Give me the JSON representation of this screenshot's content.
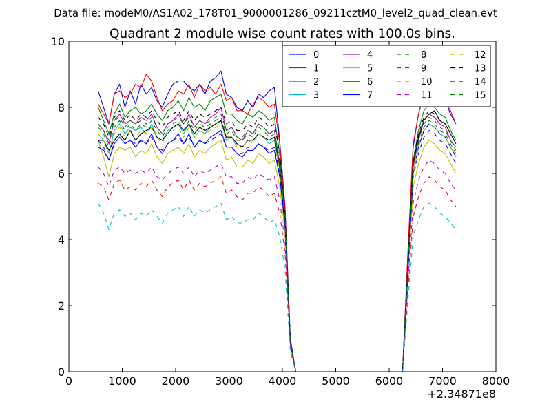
{
  "header": "Data file: modeM0/AS1A02_178T01_9000001286_09211cztM0_level2_quad_clean.evt",
  "chart_data": {
    "type": "line",
    "title": "Quadrant 2 module wise count rates with 100.0s bins.",
    "xlabel": "",
    "ylabel": "",
    "x_offset_label": "+2.34871e8",
    "xlim": [
      0,
      8000
    ],
    "ylim": [
      0,
      10
    ],
    "xticks": [
      "0",
      "1000",
      "2000",
      "3000",
      "4000",
      "5000",
      "6000",
      "7000",
      "8000"
    ],
    "yticks": [
      "0",
      "2",
      "4",
      "6",
      "8",
      "10"
    ],
    "grid": false,
    "legend_position": "top-right",
    "legend_columns": 4,
    "x": [
      550,
      650,
      750,
      850,
      950,
      1050,
      1150,
      1250,
      1350,
      1450,
      1550,
      1650,
      1750,
      1850,
      1950,
      2050,
      2150,
      2250,
      2350,
      2450,
      2550,
      2650,
      2750,
      2850,
      2950,
      3050,
      3150,
      3250,
      3350,
      3450,
      3550,
      3650,
      3750,
      3850,
      3950,
      4050,
      4150,
      4250,
      4350,
      4450,
      4550,
      4650,
      4750,
      4850,
      4950,
      5050,
      5150,
      5250,
      5350,
      5450,
      5550,
      5650,
      5750,
      5850,
      5950,
      6050,
      6150,
      6250,
      6350,
      6450,
      6550,
      6650,
      6750,
      6850,
      6950,
      7050,
      7150,
      7250
    ],
    "series": [
      {
        "name": "0",
        "color": "#0000ff",
        "dash": "solid",
        "values": [
          8.5,
          8.0,
          7.5,
          8.4,
          8.7,
          8.0,
          8.5,
          8.1,
          8.7,
          8.4,
          8.6,
          8.2,
          8.0,
          8.4,
          8.7,
          8.8,
          8.8,
          8.6,
          8.5,
          8.7,
          8.4,
          8.8,
          8.9,
          9.1,
          8.4,
          8.3,
          8.0,
          7.9,
          8.2,
          8.0,
          8.4,
          8.3,
          8.5,
          8.6,
          7.0,
          5.0,
          1.0,
          0,
          0,
          0,
          0,
          0,
          0,
          0,
          0,
          0,
          0,
          0,
          0,
          0,
          0,
          0,
          0,
          0,
          0,
          0,
          0,
          0,
          3.5,
          6.8,
          7.8,
          8.4,
          8.7,
          8.6,
          8.4,
          8.2,
          7.8,
          7.5
        ]
      },
      {
        "name": "1",
        "color": "#008000",
        "dash": "solid",
        "values": [
          8.0,
          7.6,
          7.2,
          7.8,
          8.1,
          7.7,
          7.9,
          8.0,
          7.8,
          7.9,
          8.1,
          7.8,
          7.6,
          7.9,
          8.0,
          8.2,
          7.9,
          8.3,
          8.0,
          8.1,
          7.9,
          8.2,
          8.3,
          8.4,
          7.8,
          7.8,
          7.6,
          7.5,
          7.8,
          7.7,
          7.9,
          7.8,
          7.6,
          7.7,
          6.6,
          4.8,
          0.9,
          0,
          0,
          0,
          0,
          0,
          0,
          0,
          0,
          0,
          0,
          0,
          0,
          0,
          0,
          0,
          0,
          0,
          0,
          0,
          0,
          0,
          3.3,
          6.4,
          7.3,
          7.9,
          8.1,
          8.0,
          7.8,
          7.7,
          7.3,
          7.0
        ]
      },
      {
        "name": "2",
        "color": "#ff0000",
        "dash": "solid",
        "values": [
          8.1,
          7.8,
          7.5,
          8.4,
          8.5,
          8.3,
          8.4,
          8.7,
          8.6,
          9.0,
          8.8,
          8.3,
          7.9,
          8.1,
          8.2,
          8.5,
          8.4,
          8.7,
          8.3,
          8.7,
          8.5,
          8.6,
          8.4,
          8.7,
          8.2,
          8.3,
          7.9,
          7.9,
          7.8,
          8.1,
          8.3,
          8.2,
          8.0,
          8.1,
          6.9,
          4.9,
          0.9,
          0,
          0,
          0,
          0,
          0,
          0,
          0,
          0,
          0,
          0,
          0,
          0,
          0,
          0,
          0,
          0,
          0,
          0,
          0,
          0,
          0,
          3.6,
          6.9,
          7.8,
          8.5,
          8.7,
          8.8,
          8.4,
          8.2,
          7.9,
          7.5
        ]
      },
      {
        "name": "3",
        "color": "#00bfbf",
        "dash": "solid",
        "values": [
          7.2,
          7.0,
          6.6,
          7.3,
          7.5,
          7.2,
          7.4,
          7.3,
          7.4,
          7.2,
          7.5,
          7.1,
          7.0,
          7.3,
          7.4,
          7.5,
          7.2,
          7.5,
          7.1,
          7.3,
          7.2,
          7.4,
          7.5,
          7.6,
          7.0,
          7.1,
          6.8,
          6.8,
          7.0,
          7.0,
          7.2,
          7.1,
          6.9,
          7.0,
          6.1,
          4.5,
          0.9,
          0,
          0,
          0,
          0,
          0,
          0,
          0,
          0,
          0,
          0,
          0,
          0,
          0,
          0,
          0,
          0,
          0,
          0,
          0,
          0,
          0,
          3.1,
          6.0,
          6.8,
          7.3,
          7.5,
          7.4,
          7.2,
          7.1,
          6.8,
          6.5
        ]
      },
      {
        "name": "4",
        "color": "#bf00bf",
        "dash": "solid",
        "values": [
          7.5,
          7.3,
          6.9,
          7.6,
          7.8,
          7.5,
          7.6,
          7.5,
          7.7,
          7.6,
          7.8,
          7.4,
          7.2,
          7.5,
          7.6,
          7.8,
          7.5,
          7.8,
          7.4,
          7.6,
          7.5,
          7.7,
          7.8,
          8.0,
          7.3,
          7.4,
          7.1,
          7.0,
          7.3,
          7.2,
          7.5,
          7.4,
          7.2,
          7.3,
          6.3,
          4.6,
          0.9,
          0,
          0,
          0,
          0,
          0,
          0,
          0,
          0,
          0,
          0,
          0,
          0,
          0,
          0,
          0,
          0,
          0,
          0,
          0,
          0,
          0,
          3.2,
          6.2,
          7.0,
          7.6,
          7.8,
          7.7,
          7.5,
          7.4,
          7.0,
          6.8
        ]
      },
      {
        "name": "5",
        "color": "#bfbf00",
        "dash": "solid",
        "values": [
          7.0,
          6.5,
          5.9,
          6.6,
          6.8,
          6.7,
          6.8,
          6.5,
          6.7,
          6.6,
          6.9,
          6.5,
          6.3,
          6.6,
          6.7,
          6.8,
          6.6,
          6.9,
          6.5,
          6.7,
          6.6,
          6.8,
          6.9,
          7.0,
          6.4,
          6.5,
          6.2,
          6.2,
          6.4,
          6.3,
          6.6,
          6.5,
          6.3,
          6.4,
          5.6,
          4.2,
          0.8,
          0,
          0,
          0,
          0,
          0,
          0,
          0,
          0,
          0,
          0,
          0,
          0,
          0,
          0,
          0,
          0,
          0,
          0,
          0,
          0,
          0,
          2.9,
          5.6,
          6.3,
          6.8,
          7.0,
          6.9,
          6.7,
          6.6,
          6.3,
          6.0
        ]
      },
      {
        "name": "6",
        "color": "#000000",
        "dash": "solid",
        "values": [
          7.0,
          7.0,
          6.7,
          7.0,
          7.2,
          7.0,
          7.3,
          7.0,
          7.2,
          7.3,
          7.4,
          7.1,
          7.0,
          7.2,
          7.4,
          7.5,
          7.3,
          7.5,
          7.2,
          7.4,
          7.3,
          7.4,
          7.5,
          7.6,
          7.1,
          7.1,
          6.9,
          6.8,
          7.0,
          7.0,
          7.2,
          7.1,
          7.0,
          7.1,
          6.2,
          4.6,
          0.9,
          0,
          0,
          0,
          0,
          0,
          0,
          0,
          0,
          0,
          0,
          0,
          0,
          0,
          0,
          0,
          0,
          0,
          0,
          0,
          0,
          0,
          3.2,
          6.3,
          7.1,
          7.6,
          7.8,
          7.9,
          7.6,
          7.5,
          7.2,
          6.9
        ]
      },
      {
        "name": "7",
        "color": "#0000ff",
        "dash": "solid",
        "values": [
          6.8,
          6.7,
          6.4,
          6.9,
          7.1,
          6.9,
          7.0,
          6.8,
          7.0,
          6.9,
          7.2,
          6.8,
          6.6,
          6.9,
          7.0,
          7.2,
          6.9,
          7.2,
          6.8,
          7.0,
          6.9,
          7.1,
          7.2,
          7.3,
          6.8,
          6.8,
          6.6,
          6.5,
          6.7,
          6.7,
          6.9,
          6.8,
          6.6,
          6.7,
          5.9,
          4.4,
          0.9,
          0,
          0,
          0,
          0,
          0,
          0,
          0,
          0,
          0,
          0,
          0,
          0,
          0,
          0,
          0,
          0,
          0,
          0,
          0,
          0,
          0,
          3.0,
          6.0,
          6.8,
          7.3,
          7.5,
          7.4,
          7.2,
          7.1,
          6.8,
          6.5
        ]
      },
      {
        "name": "8",
        "color": "#008000",
        "dash": "dashed",
        "values": [
          7.5,
          7.3,
          7.0,
          7.6,
          7.7,
          7.4,
          7.6,
          7.5,
          7.6,
          7.5,
          7.7,
          7.4,
          7.2,
          7.5,
          7.6,
          7.7,
          7.5,
          7.7,
          7.4,
          7.6,
          7.5,
          7.6,
          7.7,
          7.8,
          7.3,
          7.4,
          7.1,
          7.1,
          7.3,
          7.2,
          7.5,
          7.4,
          7.2,
          7.3,
          6.4,
          4.7,
          0.9,
          0,
          0,
          0,
          0,
          0,
          0,
          0,
          0,
          0,
          0,
          0,
          0,
          0,
          0,
          0,
          0,
          0,
          0,
          0,
          0,
          0,
          3.2,
          6.2,
          7.0,
          7.5,
          7.7,
          7.6,
          7.4,
          7.3,
          7.0,
          6.7
        ]
      },
      {
        "name": "9",
        "color": "#ff0000",
        "dash": "dashed",
        "values": [
          5.7,
          5.6,
          5.2,
          5.7,
          5.8,
          5.5,
          5.6,
          5.5,
          5.7,
          5.6,
          5.8,
          5.5,
          5.3,
          5.6,
          5.7,
          5.8,
          5.5,
          5.8,
          5.5,
          5.7,
          5.6,
          5.7,
          5.8,
          5.9,
          5.4,
          5.5,
          5.3,
          5.2,
          5.4,
          5.4,
          5.6,
          5.5,
          5.3,
          5.4,
          4.8,
          3.6,
          0.7,
          0,
          0,
          0,
          0,
          0,
          0,
          0,
          0,
          0,
          0,
          0,
          0,
          0,
          0,
          0,
          0,
          0,
          0,
          0,
          0,
          0,
          2.4,
          4.7,
          5.3,
          5.7,
          5.9,
          5.8,
          5.6,
          5.5,
          5.2,
          5.0
        ]
      },
      {
        "name": "10",
        "color": "#00bfbf",
        "dash": "dashed",
        "values": [
          5.1,
          4.8,
          4.3,
          4.8,
          4.9,
          4.7,
          4.8,
          4.6,
          4.8,
          4.7,
          4.9,
          4.7,
          4.5,
          4.8,
          4.9,
          5.0,
          4.7,
          5.0,
          4.7,
          4.9,
          4.8,
          4.9,
          5.0,
          5.1,
          4.6,
          4.7,
          4.5,
          4.5,
          4.6,
          4.6,
          4.8,
          4.7,
          4.5,
          4.6,
          4.1,
          3.1,
          0.6,
          0,
          0,
          0,
          0,
          0,
          0,
          0,
          0,
          0,
          0,
          0,
          0,
          0,
          0,
          0,
          0,
          0,
          0,
          0,
          0,
          0,
          2.1,
          4.1,
          4.6,
          5.0,
          5.1,
          5.0,
          4.8,
          4.7,
          4.5,
          4.3
        ]
      },
      {
        "name": "11",
        "color": "#bf00bf",
        "dash": "dashed",
        "values": [
          6.2,
          6.0,
          5.6,
          6.1,
          6.2,
          6.0,
          6.1,
          6.0,
          6.1,
          6.0,
          6.2,
          5.9,
          5.8,
          6.0,
          6.1,
          6.2,
          6.0,
          6.2,
          5.9,
          6.1,
          6.0,
          6.1,
          6.2,
          6.3,
          5.9,
          5.9,
          5.7,
          5.7,
          5.9,
          5.8,
          6.0,
          5.9,
          5.8,
          5.9,
          5.2,
          3.9,
          0.8,
          0,
          0,
          0,
          0,
          0,
          0,
          0,
          0,
          0,
          0,
          0,
          0,
          0,
          0,
          0,
          0,
          0,
          0,
          0,
          0,
          0,
          2.6,
          5.1,
          5.8,
          6.2,
          6.4,
          6.3,
          6.1,
          6.0,
          5.7,
          5.5
        ]
      },
      {
        "name": "12",
        "color": "#bfbf00",
        "dash": "dashed",
        "values": [
          7.2,
          7.0,
          6.6,
          7.2,
          7.4,
          7.1,
          7.3,
          7.1,
          7.3,
          7.2,
          7.4,
          7.1,
          6.9,
          7.2,
          7.3,
          7.4,
          7.1,
          7.4,
          7.1,
          7.3,
          7.2,
          7.3,
          7.4,
          7.5,
          7.0,
          7.1,
          6.8,
          6.8,
          7.0,
          6.9,
          7.2,
          7.1,
          6.9,
          7.0,
          6.1,
          4.5,
          0.9,
          0,
          0,
          0,
          0,
          0,
          0,
          0,
          0,
          0,
          0,
          0,
          0,
          0,
          0,
          0,
          0,
          0,
          0,
          0,
          0,
          0,
          3.1,
          6.0,
          6.8,
          7.3,
          7.5,
          7.4,
          7.2,
          7.1,
          6.8,
          6.5
        ]
      },
      {
        "name": "13",
        "color": "#000000",
        "dash": "dashed",
        "values": [
          7.7,
          7.5,
          7.1,
          7.7,
          7.9,
          7.6,
          7.8,
          7.6,
          7.8,
          7.7,
          7.9,
          7.6,
          7.4,
          7.7,
          7.8,
          7.9,
          7.6,
          7.9,
          7.6,
          7.8,
          7.7,
          7.8,
          7.9,
          8.0,
          7.5,
          7.6,
          7.3,
          7.3,
          7.5,
          7.4,
          7.7,
          7.6,
          7.4,
          7.5,
          6.6,
          4.8,
          0.9,
          0,
          0,
          0,
          0,
          0,
          0,
          0,
          0,
          0,
          0,
          0,
          0,
          0,
          0,
          0,
          0,
          0,
          0,
          0,
          0,
          0,
          3.3,
          6.4,
          7.2,
          7.7,
          7.9,
          7.8,
          7.6,
          7.5,
          7.2,
          6.9
        ]
      },
      {
        "name": "14",
        "color": "#0000ff",
        "dash": "dashed",
        "values": [
          7.0,
          6.8,
          6.4,
          7.0,
          7.1,
          6.9,
          7.0,
          6.9,
          7.0,
          6.9,
          7.1,
          6.8,
          6.7,
          6.9,
          7.0,
          7.1,
          6.9,
          7.1,
          6.8,
          7.0,
          6.9,
          7.0,
          7.1,
          7.2,
          6.8,
          6.8,
          6.6,
          6.6,
          6.8,
          6.7,
          6.9,
          6.8,
          6.7,
          6.8,
          6.0,
          4.4,
          0.9,
          0,
          0,
          0,
          0,
          0,
          0,
          0,
          0,
          0,
          0,
          0,
          0,
          0,
          0,
          0,
          0,
          0,
          0,
          0,
          0,
          0,
          3.0,
          5.9,
          6.6,
          7.1,
          7.3,
          7.2,
          7.0,
          6.9,
          6.6,
          6.3
        ]
      },
      {
        "name": "15",
        "color": "#008000",
        "dash": "dashed",
        "values": [
          7.4,
          7.2,
          6.8,
          7.4,
          7.6,
          7.3,
          7.5,
          7.3,
          7.5,
          7.4,
          7.6,
          7.3,
          7.1,
          7.4,
          7.5,
          7.6,
          7.3,
          7.6,
          7.3,
          7.5,
          7.4,
          7.5,
          7.6,
          7.7,
          7.2,
          7.3,
          7.0,
          7.0,
          7.2,
          7.1,
          7.4,
          7.3,
          7.1,
          7.2,
          6.3,
          4.6,
          0.9,
          0,
          0,
          0,
          0,
          0,
          0,
          0,
          0,
          0,
          0,
          0,
          0,
          0,
          0,
          0,
          0,
          0,
          0,
          0,
          0,
          0,
          3.2,
          6.2,
          6.9,
          7.4,
          7.6,
          7.5,
          7.3,
          7.2,
          6.9,
          6.6
        ]
      }
    ]
  }
}
